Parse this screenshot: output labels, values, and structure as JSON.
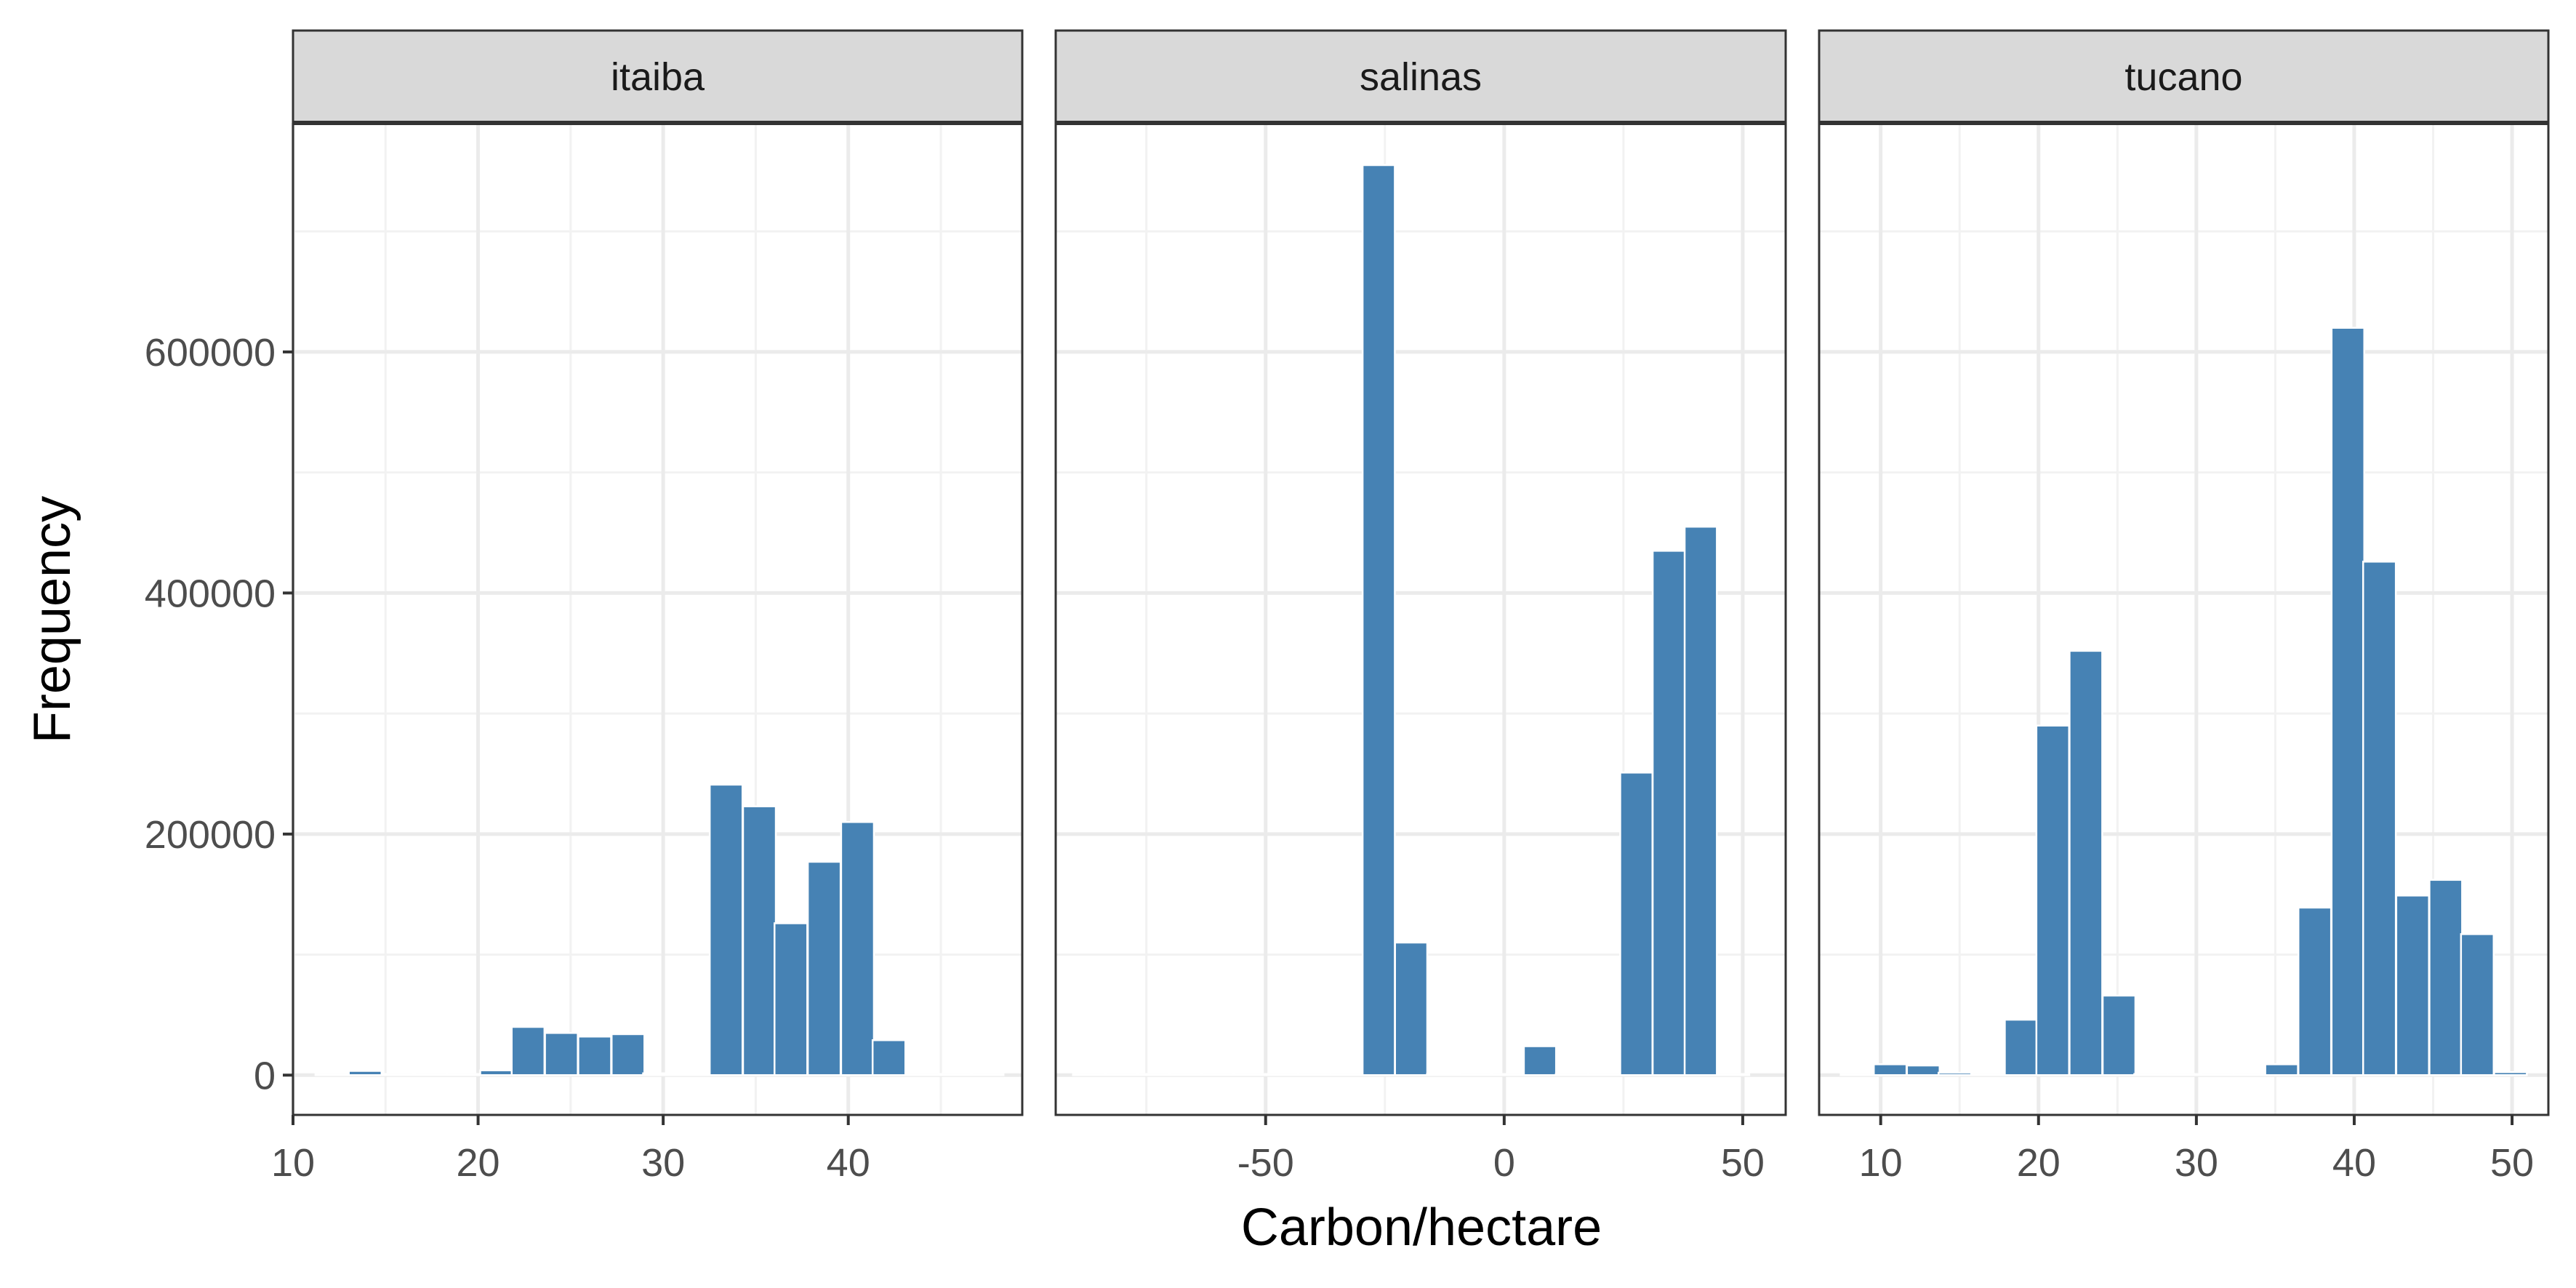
{
  "chart_data": {
    "type": "bar",
    "subtype": "faceted-histogram",
    "xlabel": "Carbon/hectare",
    "ylabel": "Frequency",
    "ylim": [
      -33000,
      790000
    ],
    "yticks": [
      0,
      200000,
      400000,
      600000
    ],
    "yticks_labels": [
      "0",
      "200000",
      "400000",
      "600000"
    ],
    "grid": true,
    "bar_color": "#4682B4",
    "strip_color": "#D9D9D9",
    "facets": [
      {
        "name": "itaiba",
        "xlim": [
          10,
          49.4
        ],
        "xticks": [
          10,
          20,
          30,
          40
        ],
        "xticks_labels": [
          "10",
          "20",
          "30",
          "40"
        ],
        "binwidth": 1.77,
        "bins": [
          {
            "x": 12.1,
            "count": 0
          },
          {
            "x": 13.9,
            "count": 3500
          },
          {
            "x": 15.7,
            "count": 0
          },
          {
            "x": 17.4,
            "count": 0
          },
          {
            "x": 19.2,
            "count": 0
          },
          {
            "x": 21.0,
            "count": 4000
          },
          {
            "x": 22.7,
            "count": 40000
          },
          {
            "x": 24.5,
            "count": 35000
          },
          {
            "x": 26.3,
            "count": 32000
          },
          {
            "x": 28.1,
            "count": 34000
          },
          {
            "x": 29.8,
            "count": 1500
          },
          {
            "x": 31.6,
            "count": 1500
          },
          {
            "x": 33.4,
            "count": 241000
          },
          {
            "x": 35.2,
            "count": 223000
          },
          {
            "x": 36.9,
            "count": 126000
          },
          {
            "x": 38.7,
            "count": 177000
          },
          {
            "x": 40.5,
            "count": 210000
          },
          {
            "x": 42.2,
            "count": 29000
          },
          {
            "x": 44.0,
            "count": 0
          },
          {
            "x": 45.8,
            "count": 0
          },
          {
            "x": 47.5,
            "count": 0
          }
        ]
      },
      {
        "name": "salinas",
        "xlim": [
          -94,
          59
        ],
        "xticks": [
          -50,
          0,
          50
        ],
        "xticks_labels": [
          "-50",
          "0",
          "50"
        ],
        "binwidth": 6.75,
        "bins": [
          {
            "x": -87.0,
            "count": 0
          },
          {
            "x": -80.3,
            "count": 0
          },
          {
            "x": -73.5,
            "count": 0
          },
          {
            "x": -66.8,
            "count": 0
          },
          {
            "x": -60.0,
            "count": 0
          },
          {
            "x": -53.3,
            "count": 0
          },
          {
            "x": -46.5,
            "count": 0
          },
          {
            "x": -39.8,
            "count": 0
          },
          {
            "x": -33.0,
            "count": 0
          },
          {
            "x": -26.3,
            "count": 755000
          },
          {
            "x": -19.5,
            "count": 110000
          },
          {
            "x": -12.8,
            "count": 1000
          },
          {
            "x": -6.0,
            "count": 0
          },
          {
            "x": 0.7,
            "count": 0
          },
          {
            "x": 7.5,
            "count": 24000
          },
          {
            "x": 14.2,
            "count": 0
          },
          {
            "x": 21.0,
            "count": 0
          },
          {
            "x": 27.7,
            "count": 251000
          },
          {
            "x": 34.5,
            "count": 435000
          },
          {
            "x": 41.2,
            "count": 455000
          },
          {
            "x": 48.0,
            "count": 0
          }
        ]
      },
      {
        "name": "tucano",
        "xlim": [
          6.1,
          52.3
        ],
        "xticks": [
          10,
          20,
          30,
          40,
          50
        ],
        "xticks_labels": [
          "10",
          "20",
          "30",
          "40",
          "50"
        ],
        "binwidth": 2.07,
        "bins": [
          {
            "x": 8.5,
            "count": 0
          },
          {
            "x": 10.6,
            "count": 9000
          },
          {
            "x": 12.7,
            "count": 8000
          },
          {
            "x": 14.7,
            "count": 2000
          },
          {
            "x": 16.8,
            "count": 0
          },
          {
            "x": 18.9,
            "count": 46000
          },
          {
            "x": 20.9,
            "count": 290000
          },
          {
            "x": 23.0,
            "count": 352000
          },
          {
            "x": 25.1,
            "count": 66000
          },
          {
            "x": 27.1,
            "count": 0
          },
          {
            "x": 29.2,
            "count": 0
          },
          {
            "x": 31.3,
            "count": 0
          },
          {
            "x": 33.4,
            "count": 0
          },
          {
            "x": 35.4,
            "count": 9000
          },
          {
            "x": 37.5,
            "count": 139000
          },
          {
            "x": 39.6,
            "count": 620000
          },
          {
            "x": 41.6,
            "count": 426000
          },
          {
            "x": 43.7,
            "count": 149000
          },
          {
            "x": 45.8,
            "count": 162000
          },
          {
            "x": 47.8,
            "count": 117000
          },
          {
            "x": 49.9,
            "count": 2500
          }
        ]
      }
    ]
  }
}
